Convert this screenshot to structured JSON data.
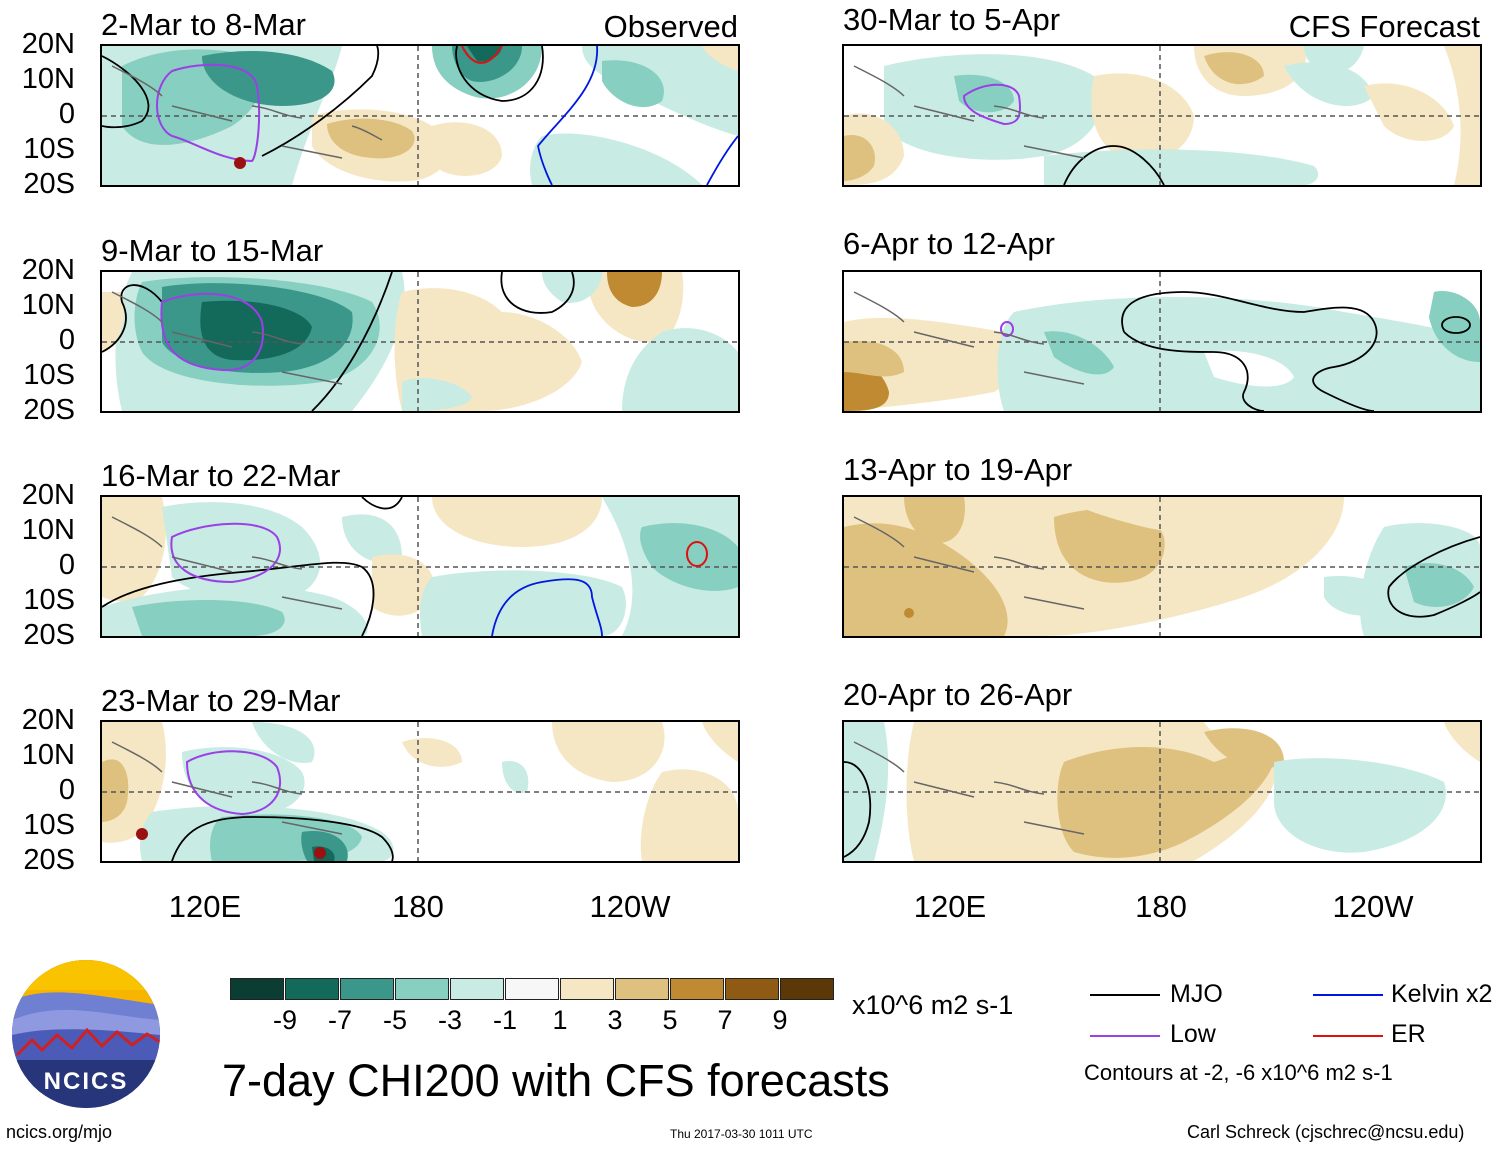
{
  "chart_data": {
    "type": "heatmap",
    "title": "7-day CHI200 with CFS forecasts",
    "units": "x10^6 m2 s-1",
    "x_ticks": [
      "120E",
      "180",
      "120W"
    ],
    "y_ticks": [
      "20N",
      "10N",
      "0",
      "10S",
      "20S"
    ],
    "columns": [
      {
        "tag": "Observed",
        "panels": [
          "2-Mar to 8-Mar",
          "9-Mar to 15-Mar",
          "16-Mar to 22-Mar",
          "23-Mar to 29-Mar"
        ]
      },
      {
        "tag": "CFS Forecast",
        "panels": [
          "30-Mar to 5-Apr",
          "6-Apr to 12-Apr",
          "13-Apr to 19-Apr",
          "20-Apr to 26-Apr"
        ]
      }
    ],
    "colorbar": {
      "levels": [
        "-9",
        "-7",
        "-5",
        "-3",
        "-1",
        "1",
        "3",
        "5",
        "7",
        "9"
      ],
      "colors": [
        "#0b3d33",
        "#13695a",
        "#3a978a",
        "#86cfc1",
        "#c8ebe4",
        "#f7f7f7",
        "#f6e7c4",
        "#dfc17f",
        "#c08a33",
        "#8f5a14",
        "#5c3708"
      ]
    },
    "legend": [
      {
        "label": "MJO",
        "color": "#000000"
      },
      {
        "label": "Low",
        "color": "#9b3fe6"
      },
      {
        "label": "Kelvin x2",
        "color": "#0017e0"
      },
      {
        "label": "ER",
        "color": "#e01010"
      }
    ],
    "contour_note": "Contours at -2, -6 x10^6 m2 s-1"
  },
  "footer": {
    "logo_text": "NCICS",
    "url": "ncics.org/mjo",
    "timestamp": "Thu 2017-03-30 1011 UTC",
    "author": "Carl Schreck (cjschrec@ncsu.edu)"
  }
}
